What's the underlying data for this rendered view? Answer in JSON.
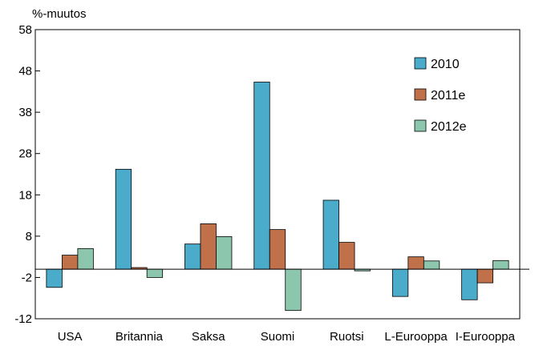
{
  "chart_data": {
    "type": "bar",
    "title": "",
    "ylabel": "%-muutos",
    "xlabel": "",
    "categories": [
      "USA",
      "Britannia",
      "Saksa",
      "Suomi",
      "Ruotsi",
      "L-Eurooppa",
      "I-Eurooppa"
    ],
    "series": [
      {
        "name": "2010",
        "color": "#4aabcb",
        "values": [
          -4.4,
          24.2,
          6.1,
          45.3,
          16.7,
          -6.6,
          -7.4
        ]
      },
      {
        "name": "2011e",
        "color": "#c0714a",
        "values": [
          3.4,
          0.4,
          11.0,
          9.6,
          6.5,
          3.0,
          -3.3
        ]
      },
      {
        "name": "2012e",
        "color": "#8cc6ad",
        "values": [
          5.0,
          -2.0,
          7.9,
          -10.0,
          -0.4,
          2.0,
          2.1
        ]
      }
    ],
    "ylim": [
      -12,
      58
    ],
    "yticks": [
      -12,
      -2,
      8,
      18,
      28,
      38,
      48,
      58
    ],
    "legend_position": "top-right"
  }
}
